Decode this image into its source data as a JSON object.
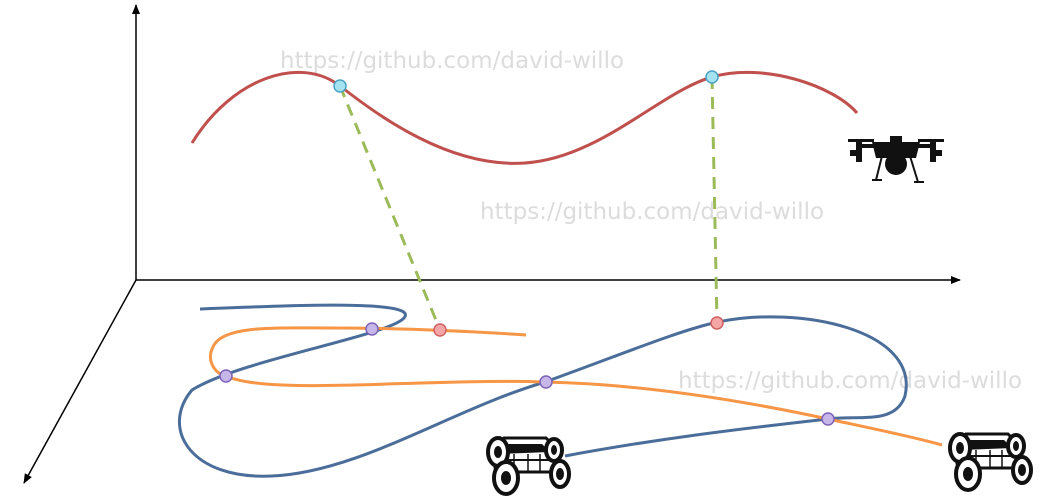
{
  "watermarks": [
    "https://github.com/david-willo",
    "https://github.com/david-willo",
    "https://github.com/david-willo"
  ],
  "colors": {
    "axes": "#000000",
    "aerial_trajectory": "#c0504d",
    "ground_trajectory_orange": "#f79646",
    "ground_trajectory_blue": "#4a6d9a",
    "projection_link": "#9bbb59",
    "aerial_waypoint": "#a6e3f0",
    "projected_waypoint": "#f4a6a6",
    "intersection_point": "#c7b6e8",
    "vehicle": "#111111"
  },
  "icons": {
    "aerial_vehicle": "quadcopter-drone-icon",
    "ground_vehicle": "wheeled-rover-icon"
  }
}
